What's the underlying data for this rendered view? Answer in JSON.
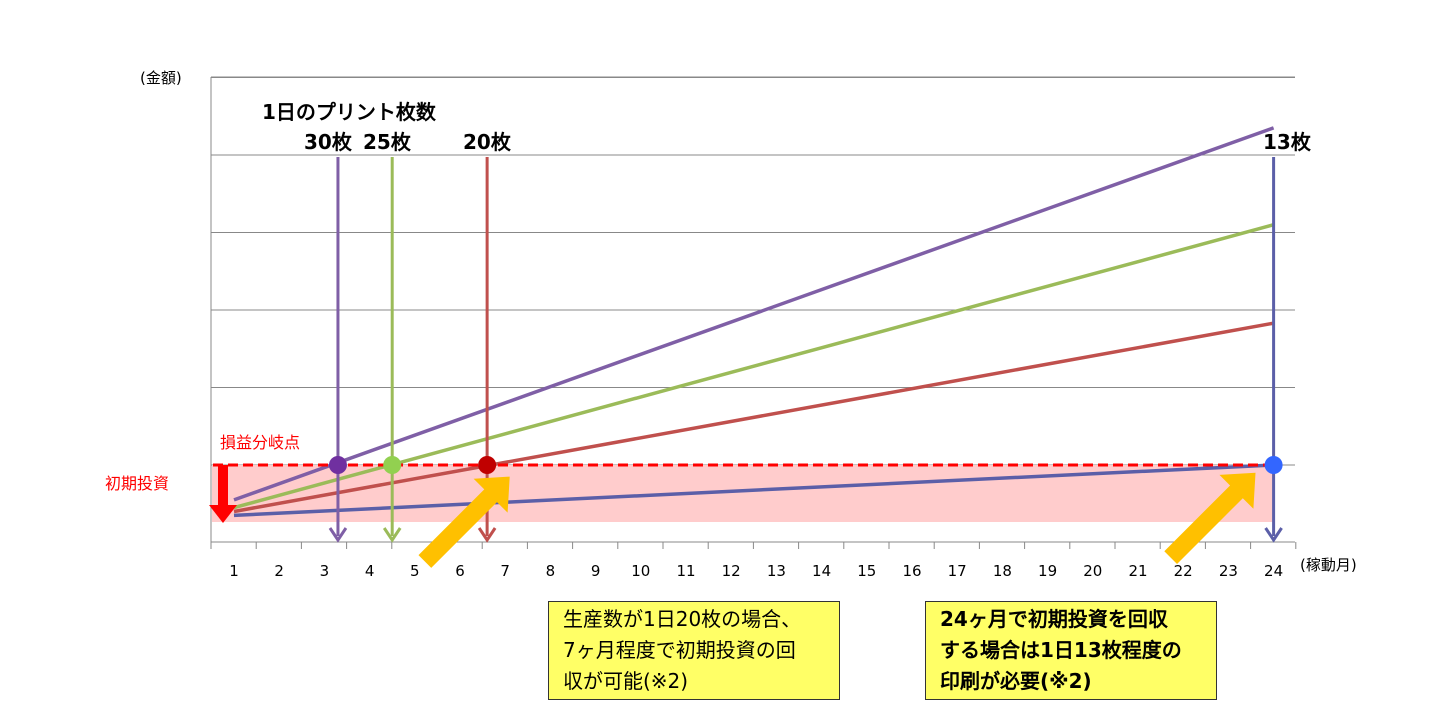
{
  "chart_data": {
    "type": "line",
    "y_axis_label": "(金額)",
    "x_axis_label": "(稼動月)",
    "x_ticks": [
      "1",
      "2",
      "3",
      "4",
      "5",
      "6",
      "7",
      "8",
      "9",
      "10",
      "11",
      "12",
      "13",
      "14",
      "15",
      "16",
      "17",
      "18",
      "19",
      "20",
      "21",
      "22",
      "23",
      "24"
    ],
    "xlim": [
      1,
      24
    ],
    "ylim": [
      -0.8,
      5.5
    ],
    "grid": "horizontal",
    "annotation_title": "1日のプリント枚数",
    "break_even_label": "損益分岐点",
    "initial_investment_label": "初期投資",
    "initial_investment_level": 0,
    "series": [
      {
        "name": "30枚",
        "color": "#7f5fa6",
        "x": [
          1,
          24
        ],
        "y": [
          -0.45,
          4.35
        ],
        "break_even_month": 3.3,
        "color_marker": "#7030a0"
      },
      {
        "name": "25枚",
        "color": "#9bbb59",
        "x": [
          1,
          24
        ],
        "y": [
          -0.55,
          3.1
        ],
        "break_even_month": 4.5,
        "color_marker": "#92d050"
      },
      {
        "name": "20枚",
        "color": "#c0504d",
        "x": [
          1,
          24
        ],
        "y": [
          -0.6,
          1.83
        ],
        "break_even_month": 6.6,
        "color_marker": "#c00000"
      },
      {
        "name": "13枚",
        "color": "#5b5fa8",
        "x": [
          1,
          24
        ],
        "y": [
          -0.65,
          0
        ],
        "break_even_month": 24,
        "color_marker": "#3366ff"
      }
    ],
    "annotations": [
      {
        "text": "生産数が1日20枚の場合、\n7ヶ月程度で初期投資の回\n収が可能(※2)"
      },
      {
        "text": "24ヶ月で初期投資を回収\nする場合は1日13枚程度の\n印刷が必要(※2)"
      }
    ]
  },
  "colors": {
    "break_even_line": "#ff0000",
    "investment_band": "#ffcccc",
    "pointer_arrow": "#ffc000",
    "callout_bg": "#ffff66"
  }
}
